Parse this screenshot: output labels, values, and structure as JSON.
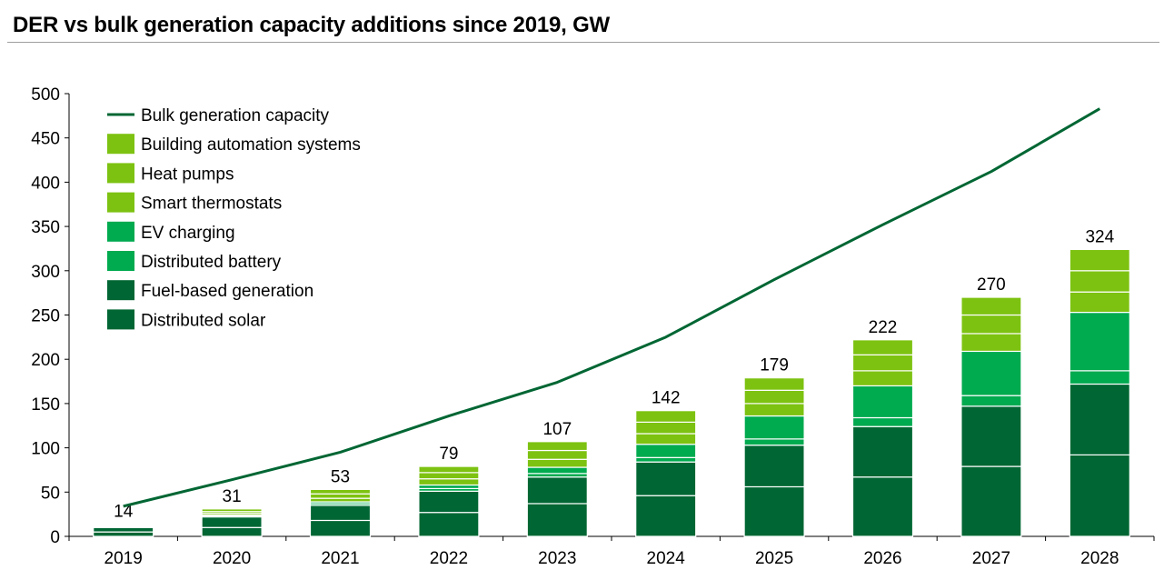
{
  "title": "DER vs bulk generation capacity additions since 2019, GW",
  "chart_data": {
    "type": "bar",
    "stacked": true,
    "title": "DER vs bulk generation capacity additions since 2019, GW",
    "categories": [
      "2019",
      "2020",
      "2021",
      "2022",
      "2023",
      "2024",
      "2025",
      "2026",
      "2027",
      "2028"
    ],
    "ylim": [
      0,
      500
    ],
    "yticks": [
      0,
      50,
      100,
      150,
      200,
      250,
      300,
      350,
      400,
      450,
      500
    ],
    "series": [
      {
        "name": "Distributed solar",
        "kind": "bar",
        "color": "#006633",
        "values": [
          5,
          10,
          18,
          27,
          37,
          46,
          56,
          67,
          79,
          92
        ]
      },
      {
        "name": "Fuel-based generation",
        "kind": "bar",
        "color": "#006633",
        "values": [
          5,
          12,
          17,
          24,
          30,
          38,
          47,
          57,
          68,
          80
        ]
      },
      {
        "name": "Distributed battery",
        "kind": "bar",
        "color": "#00AA4F",
        "values": [
          0.5,
          1,
          2,
          3,
          4,
          5,
          7,
          10,
          12,
          15
        ]
      },
      {
        "name": "EV charging",
        "kind": "bar",
        "color": "#00AA4F",
        "values": [
          0.5,
          1,
          2,
          4,
          7,
          15,
          26,
          36,
          50,
          66
        ]
      },
      {
        "name": "Smart thermostats",
        "kind": "bar",
        "color": "#7DC211",
        "values": [
          1,
          2,
          4,
          7,
          9,
          12,
          14,
          17,
          20,
          23
        ]
      },
      {
        "name": "Heat pumps",
        "kind": "bar",
        "color": "#7DC211",
        "values": [
          1,
          2,
          5,
          7,
          10,
          13,
          15,
          18,
          21,
          24
        ]
      },
      {
        "name": "Building automation systems",
        "kind": "bar",
        "color": "#7DC211",
        "values": [
          1,
          3,
          5,
          7,
          10,
          13,
          14,
          17,
          20,
          24
        ]
      },
      {
        "name": "Bulk generation capacity",
        "kind": "line",
        "color": "#006633",
        "values": [
          34,
          64,
          95,
          136,
          174,
          225,
          290,
          352,
          412,
          483
        ]
      }
    ],
    "totals": [
      14,
      31,
      53,
      79,
      107,
      142,
      179,
      222,
      270,
      324
    ],
    "legend": {
      "position": "top-left"
    },
    "grid": false
  }
}
